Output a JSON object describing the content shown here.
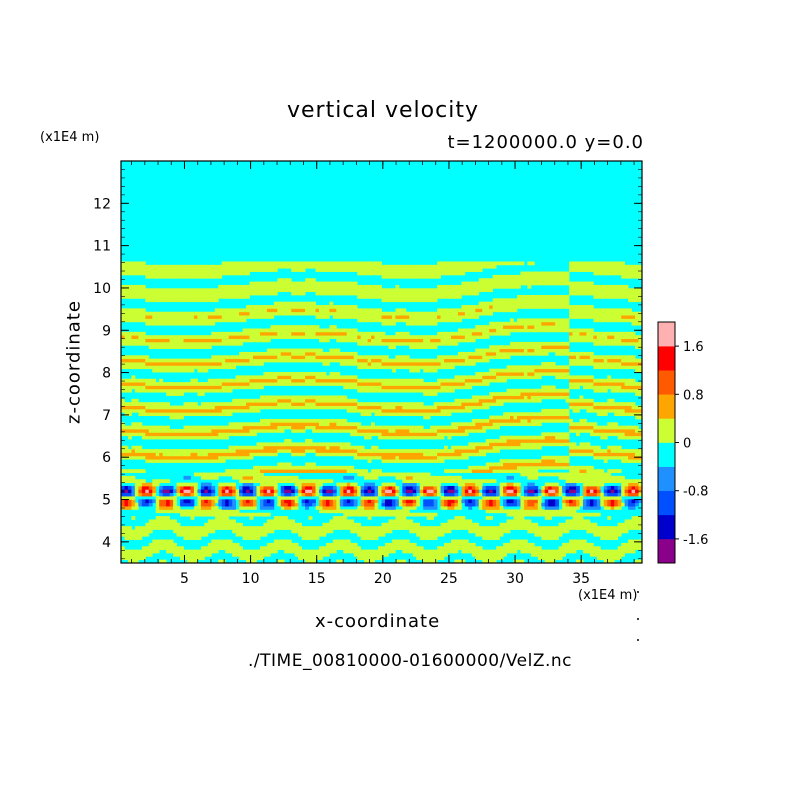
{
  "chart_data": {
    "type": "heatmap",
    "title": "vertical velocity",
    "subtitle": "t=1200000.0 y=0.0",
    "xlabel": "x-coordinate",
    "ylabel": "z-coordinate",
    "x_unit": "(x1E4 m)",
    "y_unit": "(x1E4 m)",
    "x_ticks": [
      5,
      10,
      15,
      20,
      25,
      30,
      35
    ],
    "y_ticks": [
      4,
      5,
      6,
      7,
      8,
      9,
      10,
      11,
      12
    ],
    "xlim": [
      0.2,
      39.6
    ],
    "ylim": [
      3.5,
      13.0
    ],
    "colorbar": {
      "levels": [
        -2.0,
        -1.6,
        -1.2,
        -0.8,
        -0.4,
        0,
        0.4,
        0.8,
        1.2,
        1.6,
        2.0
      ],
      "colors": [
        "#8b008b",
        "#0000cd",
        "#0050ff",
        "#1e90ff",
        "#00ffff",
        "#ccff33",
        "#ffa500",
        "#ff5a00",
        "#ff0000",
        "#ffb0b0"
      ],
      "tick_labels": [
        "1.6",
        "0.8",
        "0",
        "-0.8",
        "-1.6"
      ],
      "tick_values": [
        1.6,
        0.8,
        0,
        -0.8,
        -1.6
      ]
    },
    "background_value": -0.2,
    "field_description_regions": {
      "calm_above_z": 10.6,
      "banded_layer_z": [
        5.7,
        10.6
      ],
      "strong_wave_layer_z": [
        4.6,
        5.6
      ],
      "lower_bands_z": [
        3.5,
        4.6
      ]
    }
  },
  "source_file": "./TIME_00810000-01600000/VelZ.nc"
}
